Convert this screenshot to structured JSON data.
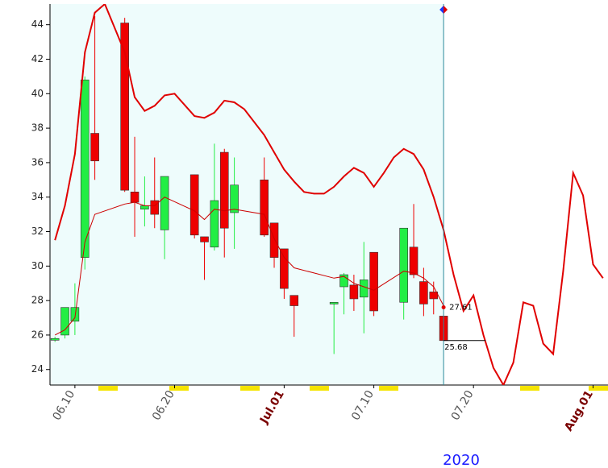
{
  "chart_data": {
    "type": "candlestick",
    "x": [
      "2020-06-08",
      "2020-06-09",
      "2020-06-10",
      "2020-06-11",
      "2020-06-12",
      "2020-06-15",
      "2020-06-16",
      "2020-06-17",
      "2020-06-18",
      "2020-06-19",
      "2020-06-22",
      "2020-06-23",
      "2020-06-24",
      "2020-06-25",
      "2020-06-26",
      "2020-06-29",
      "2020-06-30",
      "2020-07-01",
      "2020-07-02",
      "2020-07-06",
      "2020-07-07",
      "2020-07-08",
      "2020-07-09",
      "2020-07-10",
      "2020-07-13",
      "2020-07-14",
      "2020-07-15",
      "2020-07-16",
      "2020-07-17"
    ],
    "open": [
      25.7,
      26.0,
      26.8,
      30.5,
      37.7,
      44.1,
      34.3,
      33.3,
      33.8,
      32.1,
      35.3,
      31.7,
      31.1,
      36.6,
      33.1,
      35.0,
      32.5,
      31.0,
      28.3,
      27.8,
      28.8,
      28.9,
      28.2,
      30.8,
      27.9,
      31.1,
      29.1,
      28.5,
      27.1
    ],
    "high": [
      25.9,
      27.6,
      29.0,
      41.0,
      44.5,
      44.4,
      37.5,
      35.2,
      36.3,
      35.2,
      35.3,
      31.7,
      37.1,
      36.8,
      36.3,
      36.3,
      32.5,
      31.0,
      28.3,
      27.9,
      29.6,
      29.5,
      31.4,
      30.8,
      32.2,
      33.6,
      29.9,
      29.1,
      27.1
    ],
    "low": [
      25.6,
      25.8,
      26.0,
      29.8,
      35.0,
      34.3,
      31.7,
      32.3,
      32.2,
      30.4,
      31.6,
      29.2,
      30.9,
      30.5,
      31.0,
      31.7,
      29.9,
      28.1,
      25.9,
      24.9,
      27.2,
      27.4,
      26.1,
      27.1,
      26.9,
      29.3,
      27.1,
      27.2,
      25.68
    ],
    "close": [
      25.8,
      27.6,
      27.6,
      40.8,
      36.1,
      34.4,
      33.7,
      33.5,
      33.0,
      35.2,
      31.8,
      31.4,
      33.8,
      32.2,
      34.7,
      31.8,
      30.5,
      28.7,
      27.7,
      27.9,
      29.5,
      28.1,
      29.2,
      27.4,
      32.2,
      29.5,
      27.8,
      28.1,
      25.68
    ],
    "up_color": "#22ee44",
    "down_color": "#ee0000",
    "lines": [
      {
        "color": "#e00000",
        "width": 2,
        "x": [
          "2020-06-08",
          "2020-06-09",
          "2020-06-10",
          "2020-06-11",
          "2020-06-12",
          "2020-06-13",
          "2020-06-15",
          "2020-06-16",
          "2020-06-17",
          "2020-06-18",
          "2020-06-19",
          "2020-06-20",
          "2020-06-22",
          "2020-06-23",
          "2020-06-24",
          "2020-06-25",
          "2020-06-26",
          "2020-06-27",
          "2020-06-29",
          "2020-06-30",
          "2020-07-01",
          "2020-07-02",
          "2020-07-03",
          "2020-07-04",
          "2020-07-05",
          "2020-07-06",
          "2020-07-07",
          "2020-07-08",
          "2020-07-09",
          "2020-07-10",
          "2020-07-11",
          "2020-07-12",
          "2020-07-13",
          "2020-07-14",
          "2020-07-15",
          "2020-07-16",
          "2020-07-17",
          "2020-07-18",
          "2020-07-19",
          "2020-07-20",
          "2020-07-21",
          "2020-07-22",
          "2020-07-23",
          "2020-07-24",
          "2020-07-25",
          "2020-07-26",
          "2020-07-27",
          "2020-07-28",
          "2020-07-29",
          "2020-07-30",
          "2020-07-31",
          "2020-08-01",
          "2020-08-02"
        ],
        "values": [
          31.5,
          33.5,
          36.5,
          42.4,
          44.7,
          45.2,
          42.4,
          39.8,
          39.0,
          39.3,
          39.9,
          40.0,
          38.7,
          38.6,
          38.9,
          39.6,
          39.5,
          39.1,
          37.6,
          36.6,
          35.6,
          34.9,
          34.3,
          34.2,
          34.2,
          34.6,
          35.2,
          35.7,
          35.4,
          34.6,
          35.4,
          36.3,
          36.8,
          36.5,
          35.6,
          34.0,
          32.1,
          29.5,
          27.4,
          28.3,
          26.0,
          24.1,
          23.1,
          24.4,
          27.9,
          27.7,
          25.5,
          24.9,
          29.7,
          35.4,
          34.1,
          30.1,
          29.3
        ]
      },
      {
        "color": "#cc0000",
        "width": 1,
        "x": [
          "2020-06-08",
          "2020-06-09",
          "2020-06-10",
          "2020-06-11",
          "2020-06-12",
          "2020-06-15",
          "2020-06-16",
          "2020-06-17",
          "2020-06-18",
          "2020-06-19",
          "2020-06-22",
          "2020-06-23",
          "2020-06-24",
          "2020-06-25",
          "2020-06-26",
          "2020-06-29",
          "2020-06-30",
          "2020-07-01",
          "2020-07-02",
          "2020-07-06",
          "2020-07-07",
          "2020-07-08",
          "2020-07-09",
          "2020-07-10",
          "2020-07-13",
          "2020-07-14",
          "2020-07-15",
          "2020-07-16",
          "2020-07-17"
        ],
        "values": [
          26.0,
          26.3,
          27.0,
          31.4,
          33.0,
          33.6,
          33.7,
          33.5,
          33.5,
          34.0,
          33.2,
          32.7,
          33.3,
          33.2,
          33.3,
          33.0,
          31.6,
          30.5,
          29.9,
          29.3,
          29.4,
          29.0,
          28.8,
          28.6,
          29.7,
          29.6,
          29.3,
          28.8,
          27.7
        ]
      }
    ],
    "price_marks": [
      27.61,
      25.68
    ],
    "cursor_x": "2020-07-17",
    "xlim": [
      "2020-06-07T12:00:00Z",
      "2020-08-02T12:00:00Z"
    ],
    "ylim": [
      23.1,
      45.2
    ],
    "yticks": [
      24,
      26,
      28,
      30,
      32,
      34,
      36,
      38,
      40,
      42,
      44
    ],
    "xticks": [
      {
        "value": "2020-06-10",
        "label": "06.10"
      },
      {
        "value": "2020-06-20",
        "label": "06.20"
      },
      {
        "value": "2020-07-01",
        "label": "Jul.01"
      },
      {
        "value": "2020-07-10",
        "label": "07.10"
      },
      {
        "value": "2020-07-20",
        "label": "07.20"
      },
      {
        "value": "2020-08-01",
        "label": "Aug.01"
      }
    ],
    "xlabel": "2020",
    "background": "#eefcfc"
  }
}
